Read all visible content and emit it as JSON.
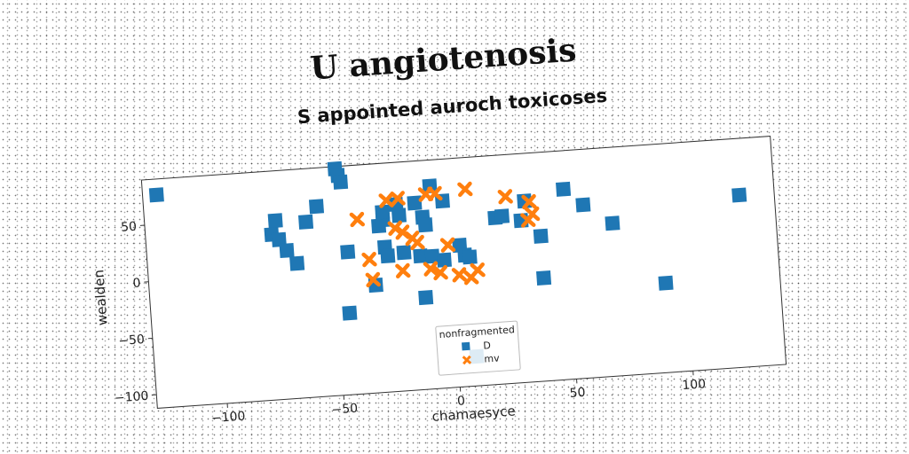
{
  "chart_data": {
    "type": "scatter",
    "title": "U angiotenosis",
    "subtitle": "S appointed auroch toxicoses",
    "xlabel": "chamaesyce",
    "ylabel": "wealden",
    "xlim": [
      -130,
      140
    ],
    "ylim": [
      -112,
      90
    ],
    "xticks": [
      -100,
      -50,
      0,
      50,
      100
    ],
    "yticks": [
      -100,
      -50,
      0,
      50
    ],
    "grid": false,
    "legend": {
      "title": "nonfragmented",
      "position": "lower-center"
    },
    "series": [
      {
        "name": "D",
        "marker": "square",
        "color": "#1f77b4",
        "points": [
          [
            -124,
            76
          ],
          [
            -47,
            88
          ],
          [
            -46,
            82
          ],
          [
            -45,
            76
          ],
          [
            -56,
            56
          ],
          [
            -61,
            43
          ],
          [
            -74,
            46
          ],
          [
            -76,
            34
          ],
          [
            -73,
            29
          ],
          [
            -70,
            19
          ],
          [
            -66,
            7
          ],
          [
            -44,
            14
          ],
          [
            -45,
            -40
          ],
          [
            -33,
            -17
          ],
          [
            -30,
            35
          ],
          [
            -28,
            40
          ],
          [
            -28,
            47
          ],
          [
            -22,
            53
          ],
          [
            -21,
            43
          ],
          [
            -14,
            53
          ],
          [
            -7,
            67
          ],
          [
            -11,
            40
          ],
          [
            -10,
            33
          ],
          [
            -2,
            53
          ],
          [
            -28,
            16
          ],
          [
            -27,
            8
          ],
          [
            -20,
            10
          ],
          [
            -13,
            6
          ],
          [
            -8,
            5
          ],
          [
            -3,
            1
          ],
          [
            4,
            13
          ],
          [
            6,
            4
          ],
          [
            8,
            2
          ],
          [
            -12,
            -31
          ],
          [
            8,
            -86
          ],
          [
            20,
            35
          ],
          [
            23,
            36
          ],
          [
            31,
            31
          ],
          [
            33,
            48
          ],
          [
            39,
            16
          ],
          [
            39,
            -21
          ],
          [
            50,
            56
          ],
          [
            58,
            41
          ],
          [
            70,
            23
          ],
          [
            91,
            -33
          ],
          [
            125,
            40
          ]
        ]
      },
      {
        "name": "mv",
        "marker": "x",
        "color": "#ff7f0e",
        "points": [
          [
            -39,
            42
          ],
          [
            -26,
            57
          ],
          [
            -21,
            58
          ],
          [
            -23,
            32
          ],
          [
            -20,
            28
          ],
          [
            -16,
            22
          ],
          [
            -14,
            18
          ],
          [
            -9,
            60
          ],
          [
            -5,
            60
          ],
          [
            8,
            62
          ],
          [
            25,
            53
          ],
          [
            35,
            47
          ],
          [
            36,
            36
          ],
          [
            34,
            31
          ],
          [
            -35,
            6
          ],
          [
            -34,
            -12
          ],
          [
            -21,
            -6
          ],
          [
            -9,
            -6
          ],
          [
            -5,
            -10
          ],
          [
            -1,
            14
          ],
          [
            3,
            -13
          ],
          [
            8,
            -16
          ],
          [
            11,
            -10
          ]
        ]
      }
    ]
  }
}
